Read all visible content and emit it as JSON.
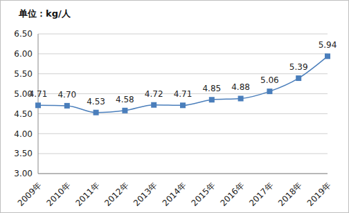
{
  "chart_data": {
    "type": "line",
    "title": "单位：kg/人",
    "categories": [
      "2009年",
      "2010年",
      "2011年",
      "2012年",
      "2013年",
      "2014年",
      "2015年",
      "2016年",
      "2017年",
      "2018年",
      "2019年"
    ],
    "values": [
      4.71,
      4.7,
      4.53,
      4.58,
      4.72,
      4.71,
      4.85,
      4.88,
      5.06,
      5.39,
      5.94
    ],
    "value_labels": [
      "4.71",
      "4.70",
      "4.53",
      "4.58",
      "4.72",
      "4.71",
      "4.85",
      "4.88",
      "5.06",
      "5.39",
      "5.94"
    ],
    "data_labels": true,
    "color": "#4a7ebb",
    "marker": "square",
    "line_style": "solid",
    "ylim": [
      3,
      6.5
    ],
    "yticks": [
      {
        "value": 3,
        "label": "3.00"
      },
      {
        "value": 3.5,
        "label": "3.50"
      },
      {
        "value": 4,
        "label": "4.00"
      },
      {
        "value": 4.5,
        "label": "4.50"
      },
      {
        "value": 5,
        "label": "5.00"
      },
      {
        "value": 5.5,
        "label": "5.50"
      },
      {
        "value": 6,
        "label": "6.00"
      },
      {
        "value": 6.5,
        "label": "6.50"
      }
    ],
    "grid": true
  }
}
